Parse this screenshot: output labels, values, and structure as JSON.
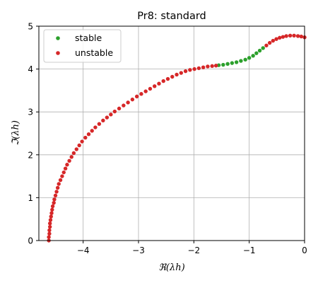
{
  "chart_data": {
    "type": "scatter",
    "title": "Pr8: standard",
    "xlabel": "ℜ(λh)",
    "ylabel": "ℑ(λh)",
    "xlim": [
      -4.8,
      0
    ],
    "ylim": [
      0,
      5
    ],
    "xticks": [
      -4,
      -3,
      -2,
      -1,
      0
    ],
    "xtick_labels": [
      "−4",
      "−3",
      "−2",
      "−1",
      "0"
    ],
    "yticks": [
      0,
      1,
      2,
      3,
      4,
      5
    ],
    "ytick_labels": [
      "0",
      "1",
      "2",
      "3",
      "4",
      "5"
    ],
    "grid": true,
    "legend_position": "top-left",
    "series": [
      {
        "name": "stable",
        "color": "#2ca02c",
        "points": [
          [
            -1.55,
            4.09
          ],
          [
            -1.47,
            4.1
          ],
          [
            -1.39,
            4.12
          ],
          [
            -1.31,
            4.14
          ],
          [
            -1.23,
            4.16
          ],
          [
            -1.15,
            4.19
          ],
          [
            -1.07,
            4.22
          ],
          [
            -1.0,
            4.26
          ],
          [
            -0.93,
            4.31
          ],
          [
            -0.87,
            4.37
          ],
          [
            -0.81,
            4.43
          ],
          [
            -0.75,
            4.49
          ]
        ]
      },
      {
        "name": "unstable",
        "color": "#d62728",
        "points": [
          [
            -4.62,
            0.0
          ],
          [
            -4.62,
            0.08
          ],
          [
            -4.61,
            0.16
          ],
          [
            -4.61,
            0.24
          ],
          [
            -4.6,
            0.32
          ],
          [
            -4.6,
            0.4
          ],
          [
            -4.59,
            0.48
          ],
          [
            -4.58,
            0.56
          ],
          [
            -4.57,
            0.64
          ],
          [
            -4.56,
            0.72
          ],
          [
            -4.55,
            0.8
          ],
          [
            -4.53,
            0.88
          ],
          [
            -4.52,
            0.96
          ],
          [
            -4.5,
            1.05
          ],
          [
            -4.48,
            1.14
          ],
          [
            -4.46,
            1.23
          ],
          [
            -4.44,
            1.32
          ],
          [
            -4.41,
            1.41
          ],
          [
            -4.38,
            1.5
          ],
          [
            -4.35,
            1.59
          ],
          [
            -4.32,
            1.68
          ],
          [
            -4.29,
            1.77
          ],
          [
            -4.25,
            1.86
          ],
          [
            -4.21,
            1.95
          ],
          [
            -4.17,
            2.04
          ],
          [
            -4.12,
            2.13
          ],
          [
            -4.07,
            2.22
          ],
          [
            -4.02,
            2.31
          ],
          [
            -3.96,
            2.4
          ],
          [
            -3.9,
            2.48
          ],
          [
            -3.84,
            2.56
          ],
          [
            -3.78,
            2.64
          ],
          [
            -3.71,
            2.72
          ],
          [
            -3.64,
            2.8
          ],
          [
            -3.57,
            2.87
          ],
          [
            -3.5,
            2.94
          ],
          [
            -3.43,
            3.01
          ],
          [
            -3.35,
            3.08
          ],
          [
            -3.27,
            3.15
          ],
          [
            -3.19,
            3.22
          ],
          [
            -3.11,
            3.29
          ],
          [
            -3.03,
            3.36
          ],
          [
            -2.95,
            3.42
          ],
          [
            -2.87,
            3.48
          ],
          [
            -2.79,
            3.54
          ],
          [
            -2.71,
            3.6
          ],
          [
            -2.63,
            3.66
          ],
          [
            -2.55,
            3.72
          ],
          [
            -2.47,
            3.77
          ],
          [
            -2.39,
            3.82
          ],
          [
            -2.31,
            3.87
          ],
          [
            -2.23,
            3.91
          ],
          [
            -2.15,
            3.95
          ],
          [
            -2.07,
            3.98
          ],
          [
            -1.99,
            4.0
          ],
          [
            -1.91,
            4.02
          ],
          [
            -1.83,
            4.04
          ],
          [
            -1.75,
            4.06
          ],
          [
            -1.67,
            4.07
          ],
          [
            -1.6,
            4.08
          ],
          [
            -0.69,
            4.55
          ],
          [
            -0.63,
            4.61
          ],
          [
            -0.57,
            4.66
          ],
          [
            -0.51,
            4.7
          ],
          [
            -0.45,
            4.73
          ],
          [
            -0.39,
            4.75
          ],
          [
            -0.33,
            4.77
          ],
          [
            -0.26,
            4.78
          ],
          [
            -0.19,
            4.78
          ],
          [
            -0.12,
            4.77
          ],
          [
            -0.06,
            4.76
          ],
          [
            0.0,
            4.74
          ]
        ]
      }
    ]
  }
}
